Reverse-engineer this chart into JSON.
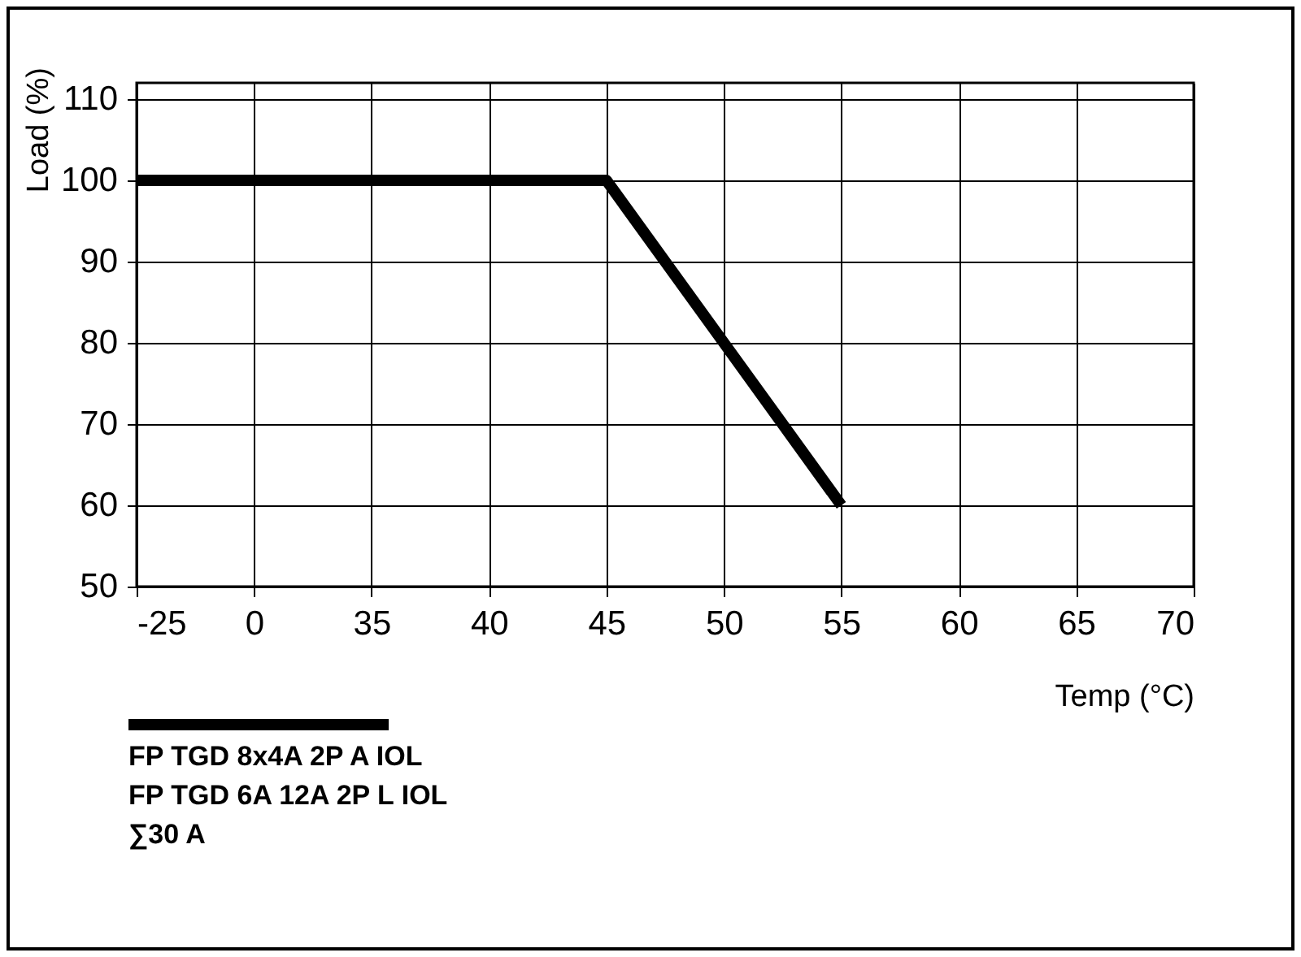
{
  "chart_data": {
    "type": "line",
    "xlabel": "Temp (°C)",
    "ylabel": "Load (%)",
    "categories": [
      "-25",
      "0",
      "35",
      "40",
      "45",
      "50",
      "55",
      "60",
      "65",
      "70"
    ],
    "series": [
      {
        "name": "FP TGD 8x4A 2P A IOL\nFP TGD 6A 12A 2P L IOL\n∑30 A",
        "color": "#000000",
        "values": [
          100,
          100,
          100,
          100,
          100,
          80,
          60,
          null,
          null,
          null
        ]
      }
    ],
    "ylim": [
      50,
      112
    ],
    "yticks": [
      50,
      60,
      70,
      80,
      90,
      100,
      110
    ],
    "grid": true,
    "legend": "bottom left",
    "marker": "none",
    "line_style": "solid"
  }
}
